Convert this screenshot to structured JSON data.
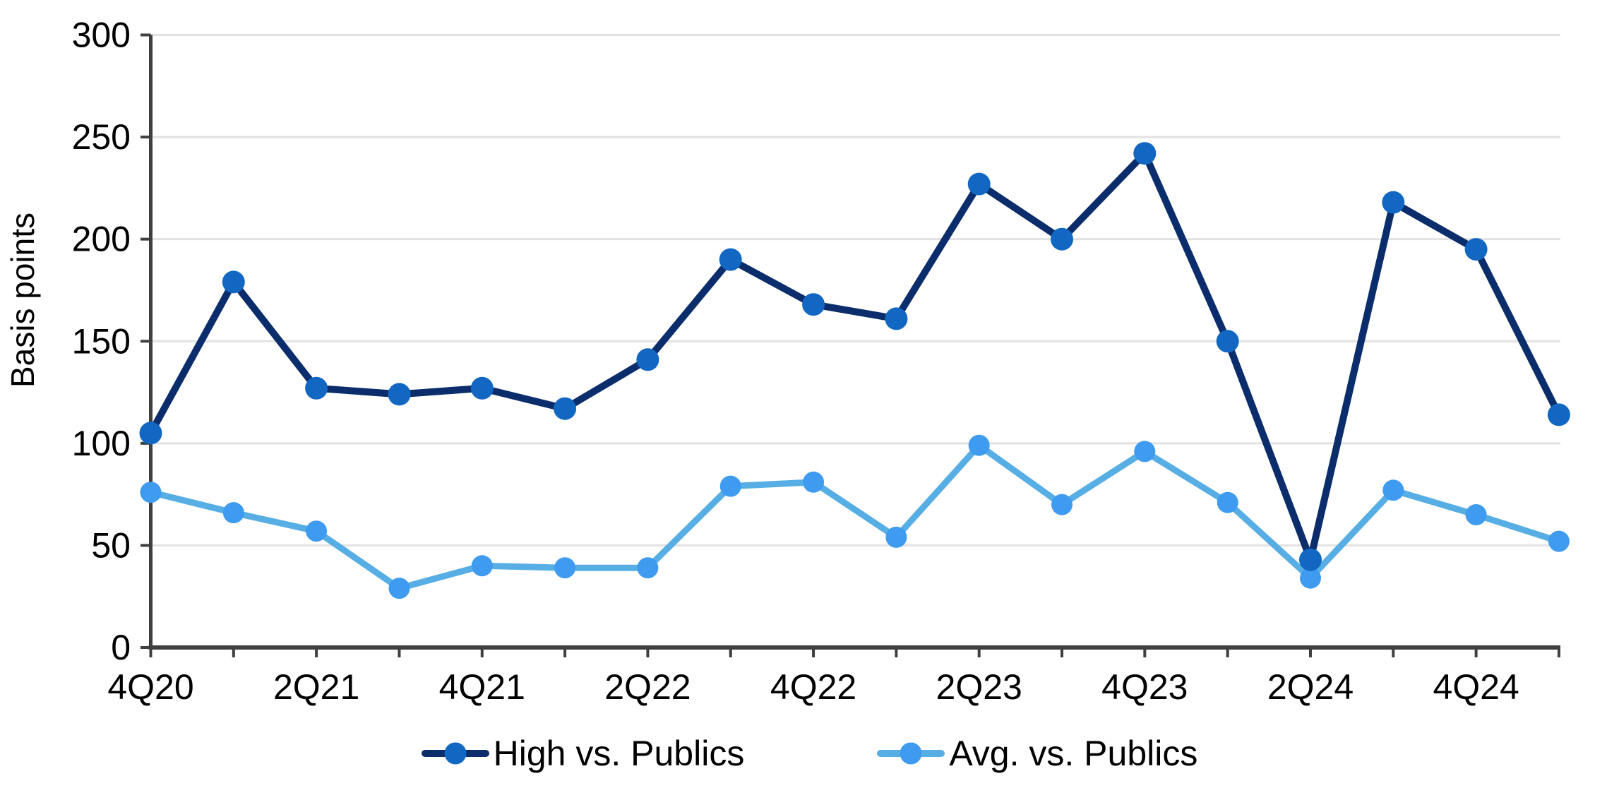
{
  "page": {
    "background": "#FFFFFF"
  },
  "axes": {
    "y_title": "Basis points"
  },
  "chart_data": {
    "type": "line",
    "title": "",
    "xlabel": "",
    "ylabel": "Basis points",
    "ylim": [
      0,
      300
    ],
    "yticks": [
      0,
      50,
      100,
      150,
      200,
      250,
      300
    ],
    "grid": "horizontal-only",
    "legend_position": "bottom",
    "categories": [
      "4Q20",
      "1Q21",
      "2Q21",
      "3Q21",
      "4Q21",
      "1Q22",
      "2Q22",
      "3Q22",
      "4Q22",
      "1Q23",
      "2Q23",
      "3Q23",
      "4Q23",
      "1Q24",
      "2Q24",
      "3Q24",
      "4Q24",
      "1Q25"
    ],
    "x_labels_shown_every": 2,
    "x_tick_labels_shown": [
      "4Q20",
      "2Q21",
      "4Q21",
      "2Q22",
      "4Q22",
      "2Q23",
      "4Q23",
      "2Q24",
      "4Q24"
    ],
    "series": [
      {
        "name": "High vs. Publics",
        "line_color": "#0B2D6B",
        "marker_color": "#1167C1",
        "values": [
          105,
          179,
          127,
          124,
          127,
          117,
          141,
          190,
          168,
          161,
          227,
          200,
          242,
          150,
          43,
          218,
          195,
          114
        ]
      },
      {
        "name": "Avg. vs. Publics",
        "line_color": "#57AEE4",
        "marker_color": "#3E9BF0",
        "values": [
          76,
          66,
          57,
          29,
          40,
          39,
          39,
          79,
          81,
          54,
          99,
          70,
          96,
          71,
          34,
          77,
          65,
          52
        ]
      }
    ],
    "colors": {
      "gridline": "#E2E2E2",
      "axis": "#3F3F3F",
      "text": "#000000"
    }
  }
}
